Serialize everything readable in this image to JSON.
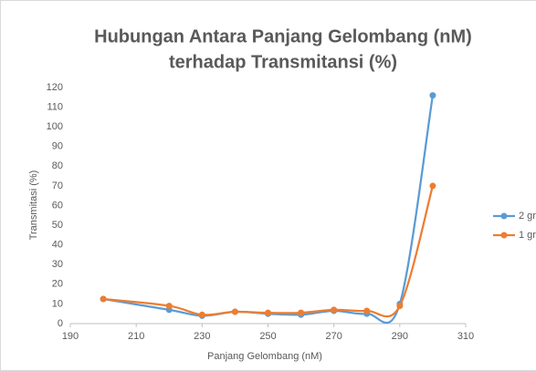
{
  "chart_data": {
    "type": "line",
    "title": "Hubungan Antara Panjang Gelombang (nM)",
    "subtitle": "terhadap Transmitansi (%)",
    "x_label": "Panjang Gelombang (nM)",
    "y_label": "Transmitasi (%)",
    "x": [
      200,
      220,
      230,
      240,
      250,
      260,
      270,
      280,
      290,
      300
    ],
    "series": [
      {
        "name": "2 gr",
        "color": "#5b9bd5",
        "values": [
          12.5,
          7,
          4,
          6,
          5,
          4.5,
          6.5,
          5,
          10,
          116
        ]
      },
      {
        "name": "1 gr",
        "color": "#ed7d31",
        "values": [
          12.5,
          9,
          4.5,
          6,
          5.5,
          5.5,
          7,
          6.5,
          9,
          70
        ]
      }
    ],
    "xlim": [
      190,
      310
    ],
    "xticks": [
      190,
      210,
      230,
      250,
      270,
      290,
      310
    ],
    "ylim": [
      0,
      120
    ],
    "yticks": [
      0,
      10,
      20,
      30,
      40,
      50,
      60,
      70,
      80,
      90,
      100,
      110,
      120
    ],
    "grid": false,
    "smooth": true,
    "legend": "right"
  }
}
